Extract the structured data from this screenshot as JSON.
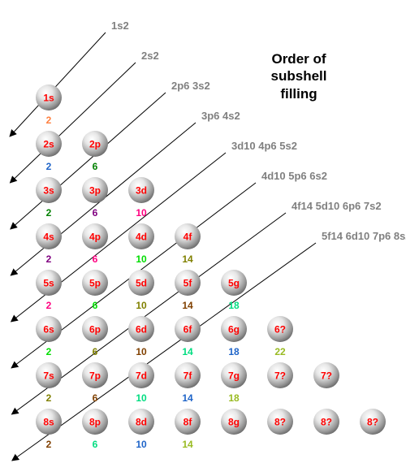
{
  "title": [
    "Order of",
    "subshell",
    "filling"
  ],
  "diagonals": [
    "1s2",
    "2s2",
    "2p6  3s2",
    "3p6  4s2",
    "3d10  4p6  5s2",
    "4d10  5p6  6s2",
    "4f14  5d10  6p6  7s2",
    "5f14  6d10  7p6  8s2"
  ],
  "rows": [
    [
      {
        "label": "1s",
        "cap": "2",
        "cap_color": "#ff8040"
      }
    ],
    [
      {
        "label": "2s",
        "cap": "2",
        "cap_color": "#1e64c8"
      },
      {
        "label": "2p",
        "cap": "6",
        "cap_color": "#008000"
      }
    ],
    [
      {
        "label": "3s",
        "cap": "2",
        "cap_color": "#008000"
      },
      {
        "label": "3p",
        "cap": "6",
        "cap_color": "#800080"
      },
      {
        "label": "3d",
        "cap": "10",
        "cap_color": "#ff0080"
      }
    ],
    [
      {
        "label": "4s",
        "cap": "2",
        "cap_color": "#800080"
      },
      {
        "label": "4p",
        "cap": "6",
        "cap_color": "#ff0080"
      },
      {
        "label": "4d",
        "cap": "10",
        "cap_color": "#00dd00"
      },
      {
        "label": "4f",
        "cap": "14",
        "cap_color": "#808000"
      }
    ],
    [
      {
        "label": "5s",
        "cap": "2",
        "cap_color": "#ff0080"
      },
      {
        "label": "5p",
        "cap": "6",
        "cap_color": "#00dd00"
      },
      {
        "label": "5d",
        "cap": "10",
        "cap_color": "#808000"
      },
      {
        "label": "5f",
        "cap": "14",
        "cap_color": "#804000"
      },
      {
        "label": "5g",
        "cap": "18",
        "cap_color": "#00dd80"
      }
    ],
    [
      {
        "label": "6s",
        "cap": "2",
        "cap_color": "#00dd00"
      },
      {
        "label": "6p",
        "cap": "6",
        "cap_color": "#808000"
      },
      {
        "label": "6d",
        "cap": "10",
        "cap_color": "#804000"
      },
      {
        "label": "6f",
        "cap": "14",
        "cap_color": "#00dd80"
      },
      {
        "label": "6g",
        "cap": "18",
        "cap_color": "#1e64c8"
      },
      {
        "label": "6?",
        "cap": "22",
        "cap_color": "#99bb22"
      }
    ],
    [
      {
        "label": "7s",
        "cap": "2",
        "cap_color": "#808000"
      },
      {
        "label": "7p",
        "cap": "6",
        "cap_color": "#804000"
      },
      {
        "label": "7d",
        "cap": "10",
        "cap_color": "#00dd80"
      },
      {
        "label": "7f",
        "cap": "14",
        "cap_color": "#1e64c8"
      },
      {
        "label": "7g",
        "cap": "18",
        "cap_color": "#99bb22"
      },
      {
        "label": "7?",
        "cap": "",
        "cap_color": "#000000"
      },
      {
        "label": "7?",
        "cap": "",
        "cap_color": "#000000"
      }
    ],
    [
      {
        "label": "8s",
        "cap": "2",
        "cap_color": "#804000"
      },
      {
        "label": "8p",
        "cap": "6",
        "cap_color": "#00dd80"
      },
      {
        "label": "8d",
        "cap": "10",
        "cap_color": "#1e64c8"
      },
      {
        "label": "8f",
        "cap": "14",
        "cap_color": "#99bb22"
      },
      {
        "label": "8g",
        "cap": "",
        "cap_color": "#000000"
      },
      {
        "label": "8?",
        "cap": "",
        "cap_color": "#000000"
      },
      {
        "label": "8?",
        "cap": "",
        "cap_color": "#000000"
      },
      {
        "label": "8?",
        "cap": "",
        "cap_color": "#000000"
      }
    ]
  ],
  "colors": {
    "ball_label": "#ff0000",
    "diagonal_label": "#808080",
    "arrow": "#000000",
    "title": "#000000"
  }
}
